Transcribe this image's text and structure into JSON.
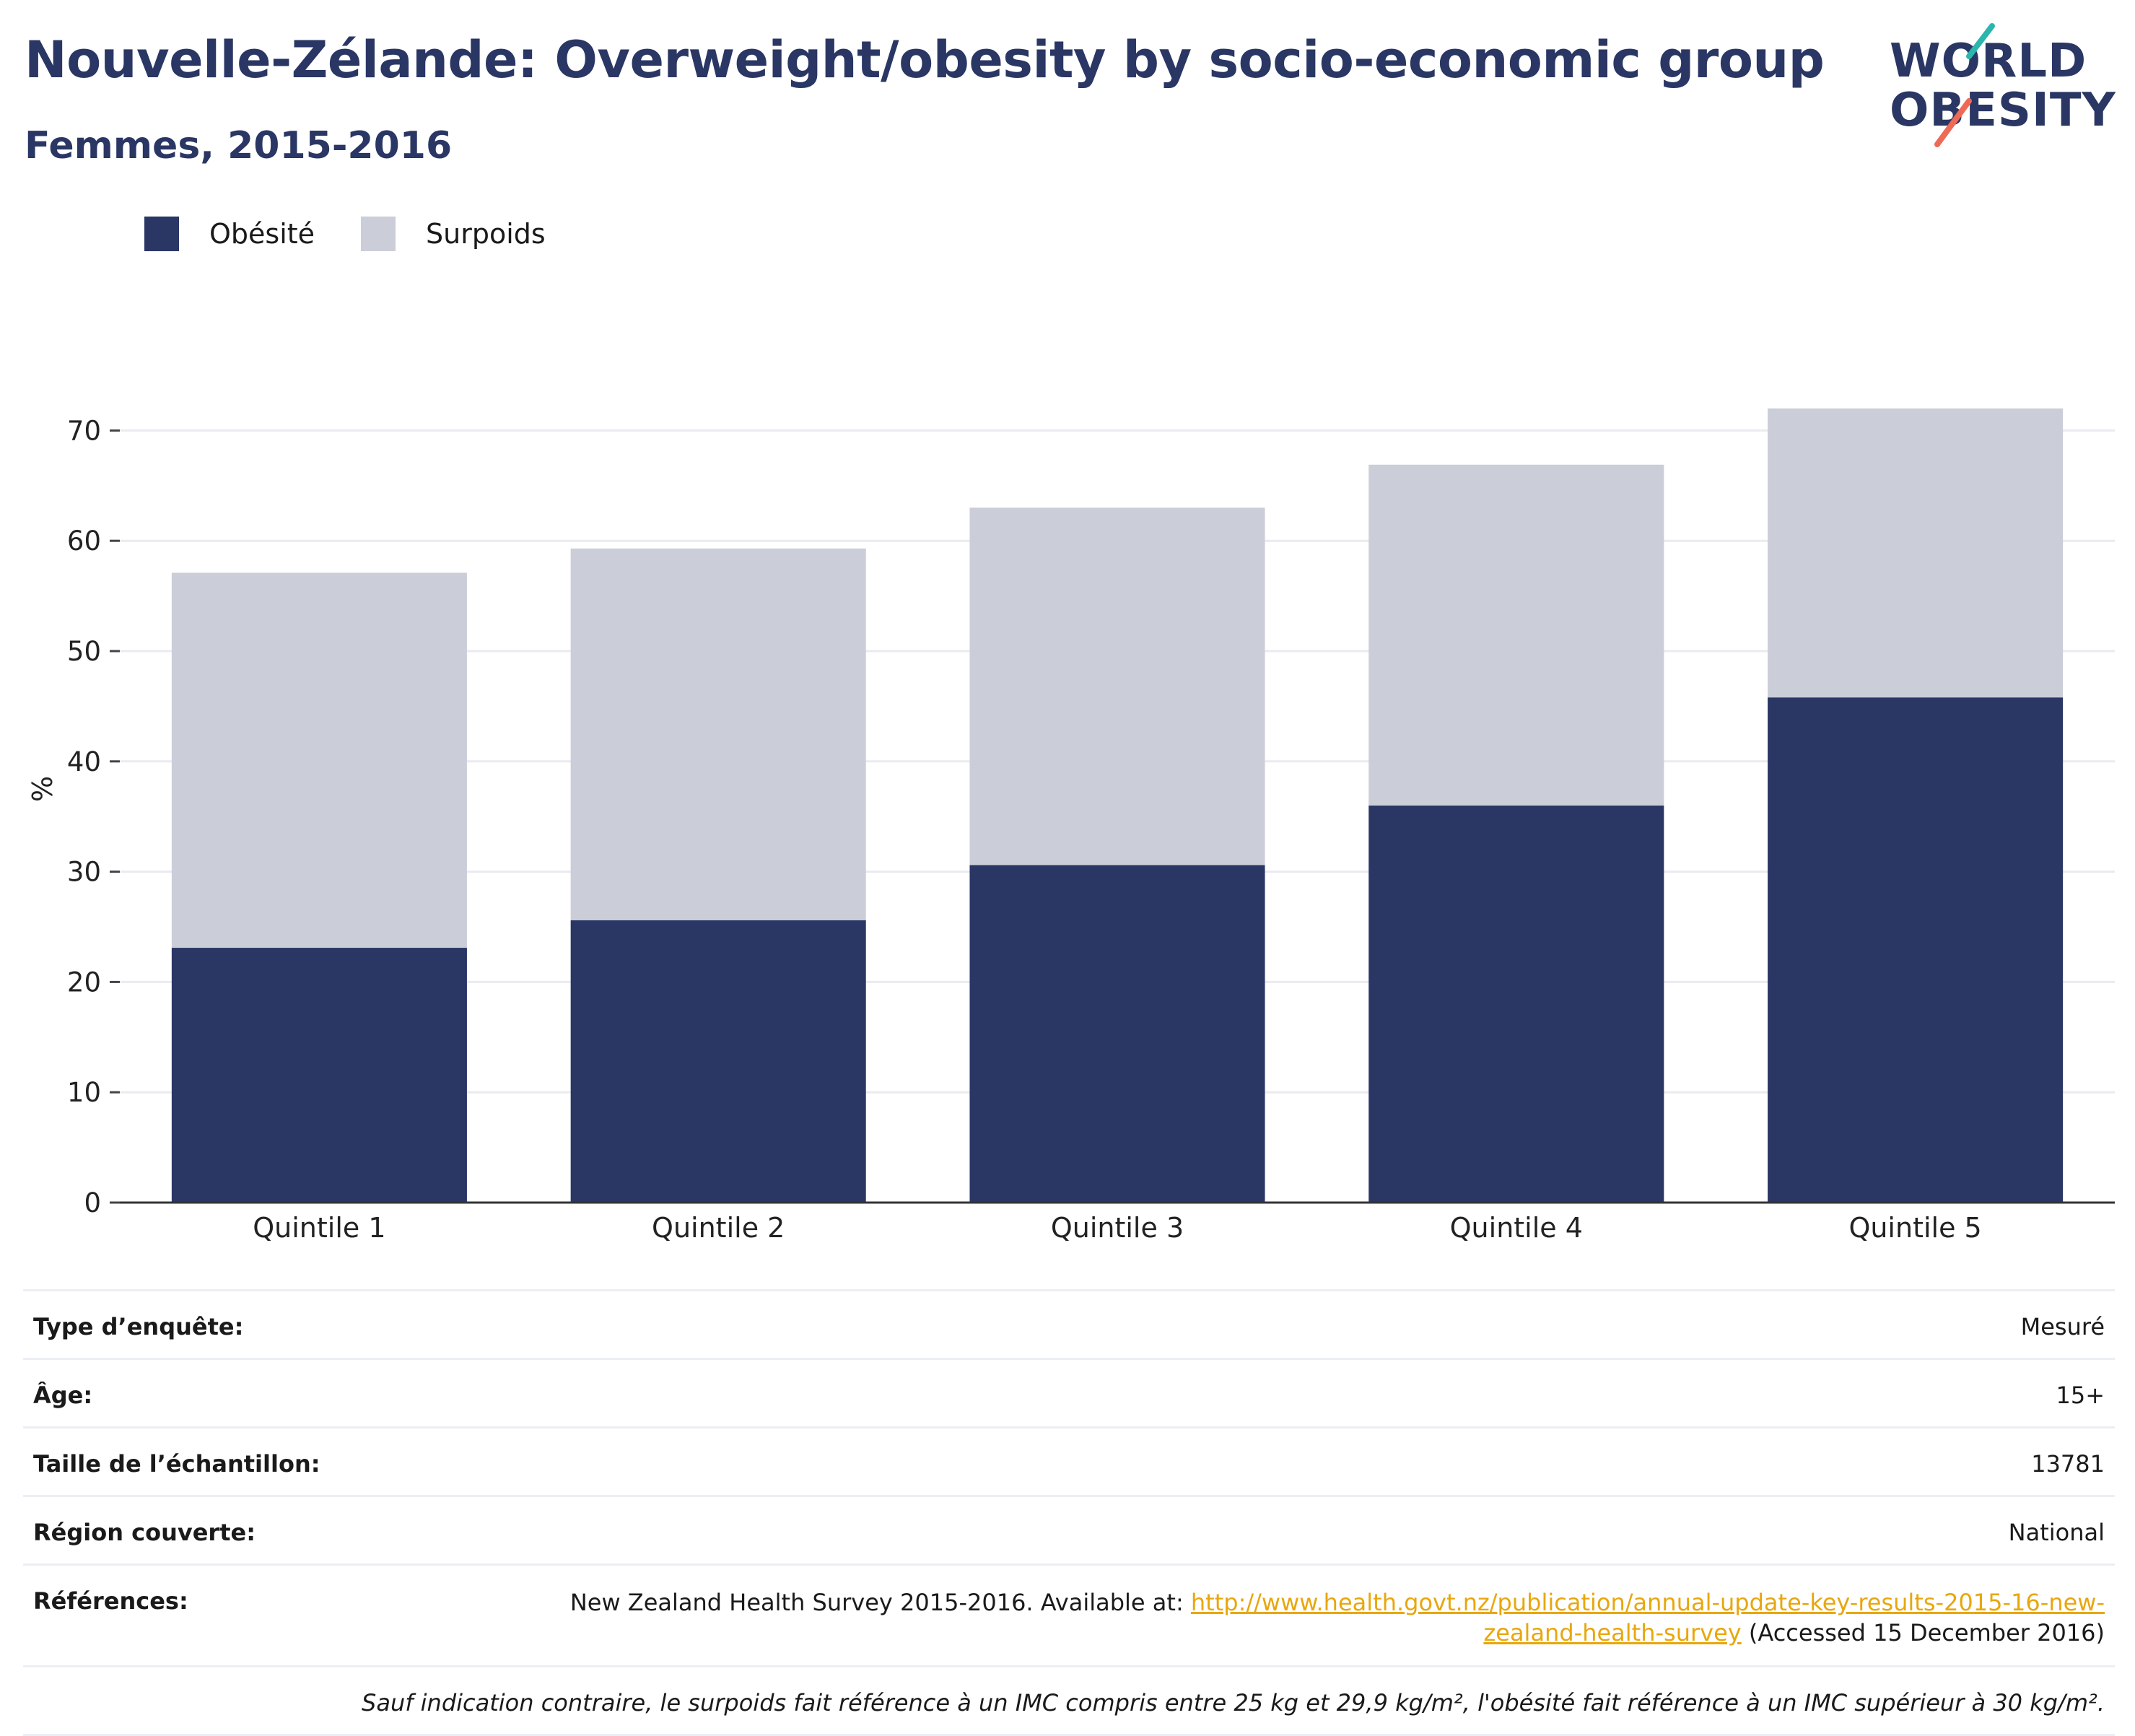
{
  "header": {
    "title": "Nouvelle-Zélande: Overweight/obesity by socio-economic group",
    "subtitle": "Femmes, 2015-2016"
  },
  "logo": {
    "line1": "WORLD",
    "line2": "OBESITY",
    "stroke_colors": [
      "#2bb6ad",
      "#ec6a56"
    ]
  },
  "legend": {
    "items": [
      {
        "label": "Obésité",
        "color": "#2a3664"
      },
      {
        "label": "Surpoids",
        "color": "#cbcdd8"
      }
    ]
  },
  "chart_data": {
    "type": "bar",
    "stacked": true,
    "categories": [
      "Quintile 1",
      "Quintile 2",
      "Quintile 3",
      "Quintile 4",
      "Quintile 5"
    ],
    "series": [
      {
        "name": "Obésité",
        "color": "#2a3664",
        "values": [
          23.1,
          25.6,
          30.6,
          36.0,
          45.8
        ]
      },
      {
        "name": "Surpoids",
        "color": "#cbcdd8",
        "values": [
          34.0,
          33.7,
          32.4,
          30.9,
          26.2
        ]
      }
    ],
    "ylabel": "%",
    "ylim": [
      0,
      75
    ],
    "yticks": [
      0,
      10,
      20,
      30,
      40,
      50,
      60,
      70
    ],
    "grid": true,
    "legend_position": "top-left"
  },
  "info": {
    "survey_type_label": "Type d’enquête:",
    "survey_type_value": "Mesuré",
    "age_label": "Âge:",
    "age_value": "15+",
    "sample_label": "Taille de l’échantillon:",
    "sample_value": "13781",
    "region_label": "Région couverte:",
    "region_value": "National",
    "refs_label": "Références:",
    "refs_prefix": "New Zealand Health Survey 2015-2016. Available at: ",
    "refs_link_1": "http://www.health.govt.nz/publication/annual-update-key-results-2015-16-new-",
    "refs_link_2": "zealand-health-survey",
    "refs_suffix": " (Accessed 15 December 2016)",
    "note": "Sauf indication contraire, le surpoids fait référence à un IMC compris entre 25 kg et 29,9 kg/m², l'obésité fait référence à un IMC supérieur à 30 kg/m²."
  }
}
